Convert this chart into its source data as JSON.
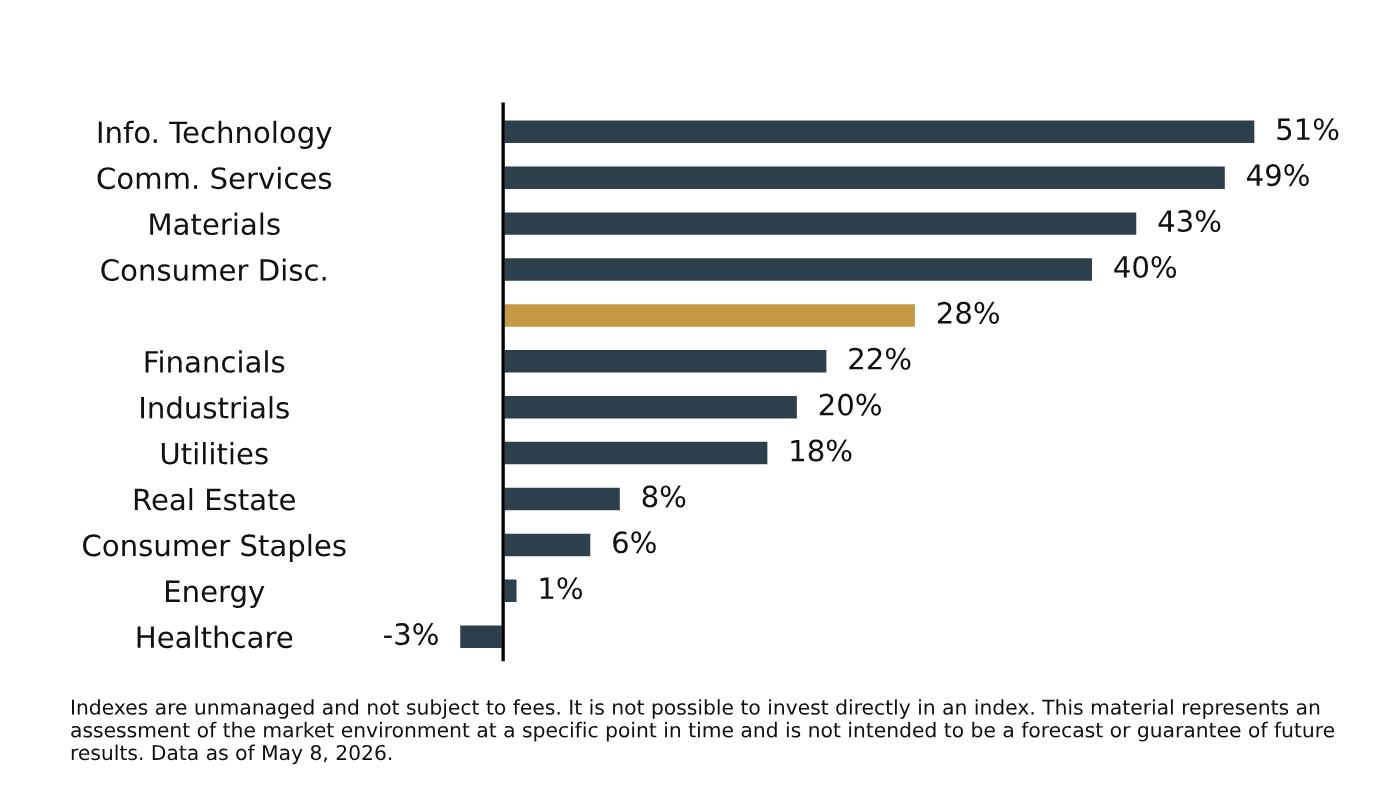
{
  "chart_data": {
    "type": "bar",
    "orientation": "horizontal",
    "categories": [
      "Info. Technology",
      "Comm. Services",
      "Materials",
      "Consumer Disc.",
      null,
      "Financials",
      "Industrials",
      "Utilities",
      "Real Estate",
      "Consumer Staples",
      "Energy",
      "Healthcare"
    ],
    "values": [
      51,
      49,
      43,
      40,
      28,
      22,
      20,
      18,
      8,
      6,
      1,
      -3
    ],
    "value_labels": [
      "51%",
      "49%",
      "43%",
      "40%",
      "28%",
      "22%",
      "20%",
      "18%",
      "8%",
      "6%",
      "1%",
      "-3%"
    ],
    "colors": [
      "#2c3f4a",
      "#2c3f4a",
      "#2c3f4a",
      "#2c3f4a",
      "#c49a45",
      "#2c3f4a",
      "#2c3f4a",
      "#2c3f4a",
      "#2c3f4a",
      "#2c3f4a",
      "#2c3f4a",
      "#2c3f4a"
    ],
    "grid": false,
    "legend": false,
    "annotations": [
      "Indexes are unmanaged and not subject to fees. It is not possible to invest directly in an index. This material represents an assessment of the market environment at a specific point in time and is not intended to be a forecast or guarantee of future results. Data as of May 8, 2026."
    ]
  }
}
